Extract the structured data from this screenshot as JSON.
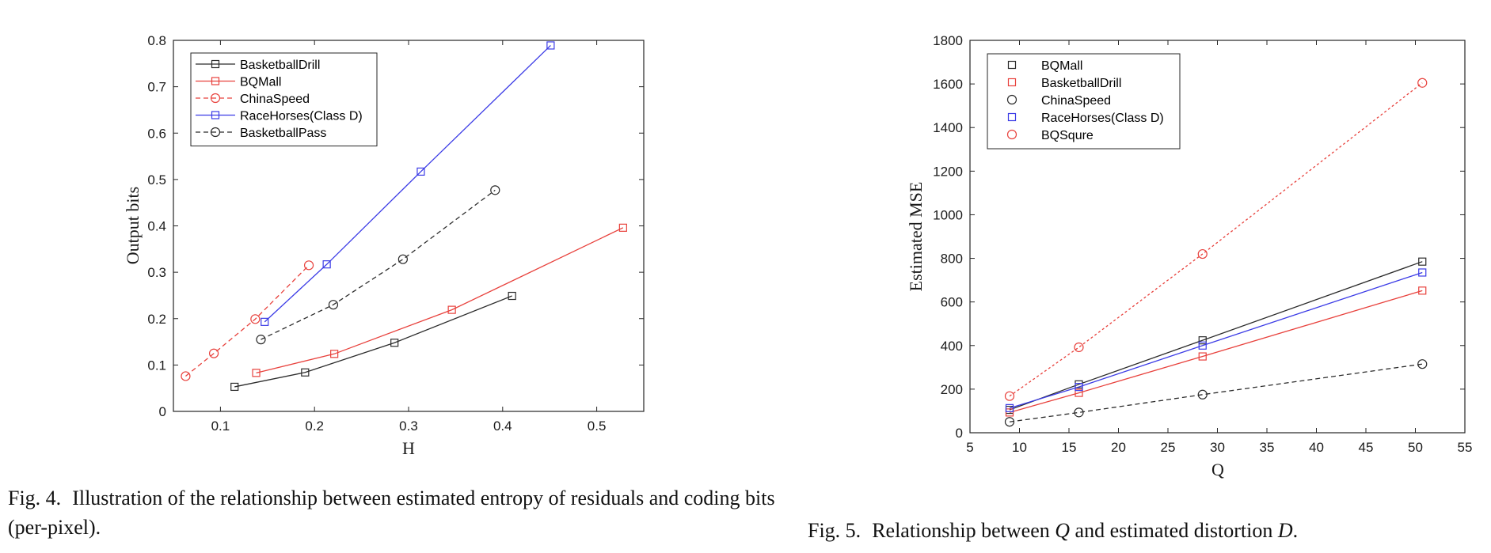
{
  "colors": {
    "black": "#2b2b2b",
    "red": "#e8413c",
    "blue": "#3b3be6",
    "axis": "#262626"
  },
  "chart_data": [
    {
      "type": "line",
      "xlabel": "H",
      "ylabel": "Output bits",
      "xlim": [
        0.05,
        0.55
      ],
      "ylim": [
        0,
        0.8
      ],
      "xticks": [
        0.1,
        0.2,
        0.3,
        0.4,
        0.5
      ],
      "yticks": [
        0,
        0.1,
        0.2,
        0.3,
        0.4,
        0.5,
        0.6,
        0.7,
        0.8
      ],
      "legend_position": "top-left",
      "series": [
        {
          "name": "BasketballDrill",
          "color": "black",
          "dash": "solid",
          "marker": "square",
          "points": [
            [
              0.115,
              0.053
            ],
            [
              0.19,
              0.084
            ],
            [
              0.285,
              0.148
            ],
            [
              0.41,
              0.249
            ]
          ]
        },
        {
          "name": "BQMall",
          "color": "red",
          "dash": "solid",
          "marker": "square",
          "points": [
            [
              0.138,
              0.083
            ],
            [
              0.221,
              0.124
            ],
            [
              0.346,
              0.219
            ],
            [
              0.528,
              0.396
            ]
          ]
        },
        {
          "name": "ChinaSpeed",
          "color": "red",
          "dash": "dashed",
          "marker": "circle",
          "points": [
            [
              0.063,
              0.076
            ],
            [
              0.093,
              0.125
            ],
            [
              0.137,
              0.199
            ],
            [
              0.194,
              0.315
            ]
          ]
        },
        {
          "name": "RaceHorses(Class D)",
          "color": "blue",
          "dash": "solid",
          "marker": "square",
          "points": [
            [
              0.147,
              0.193
            ],
            [
              0.213,
              0.317
            ],
            [
              0.313,
              0.517
            ],
            [
              0.451,
              0.789
            ]
          ]
        },
        {
          "name": "BasketballPass",
          "color": "black",
          "dash": "dashed",
          "marker": "circle",
          "points": [
            [
              0.143,
              0.155
            ],
            [
              0.22,
              0.23
            ],
            [
              0.294,
              0.328
            ],
            [
              0.392,
              0.477
            ]
          ]
        }
      ]
    },
    {
      "type": "line",
      "xlabel": "Q",
      "ylabel": "Estimated MSE",
      "xlim": [
        5,
        55
      ],
      "ylim": [
        0,
        1800
      ],
      "xticks": [
        5,
        10,
        15,
        20,
        25,
        30,
        35,
        40,
        45,
        50,
        55
      ],
      "yticks": [
        0,
        200,
        400,
        600,
        800,
        1000,
        1200,
        1400,
        1600,
        1800
      ],
      "legend_position": "top-left",
      "series": [
        {
          "name": "BQMall",
          "color": "black",
          "dash": "solid",
          "marker": "square",
          "points": [
            [
              9,
              105
            ],
            [
              16,
              222
            ],
            [
              28.5,
              424
            ],
            [
              50.7,
              785
            ]
          ]
        },
        {
          "name": "BasketballDrill",
          "color": "red",
          "dash": "solid",
          "marker": "square",
          "points": [
            [
              9,
              93
            ],
            [
              16,
              183
            ],
            [
              28.5,
              350
            ],
            [
              50.7,
              652
            ]
          ]
        },
        {
          "name": "ChinaSpeed",
          "color": "black",
          "dash": "dashed",
          "marker": "circle",
          "points": [
            [
              9,
              50
            ],
            [
              16,
              93
            ],
            [
              28.5,
              175
            ],
            [
              50.7,
              315
            ]
          ]
        },
        {
          "name": "RaceHorses(Class D)",
          "color": "blue",
          "dash": "solid",
          "marker": "square",
          "points": [
            [
              9,
              113
            ],
            [
              16,
              210
            ],
            [
              28.5,
              400
            ],
            [
              50.7,
              735
            ]
          ]
        },
        {
          "name": "BQSqure",
          "color": "red",
          "dash": "dotted",
          "marker": "circle",
          "points": [
            [
              9,
              168
            ],
            [
              16,
              392
            ],
            [
              28.5,
              820
            ],
            [
              50.7,
              1605
            ]
          ]
        }
      ]
    }
  ],
  "captions": {
    "fig4_prefix": "Fig. 4.",
    "fig4_text": "Illustration of the relationship between estimated entropy of residuals and coding bits (per-pixel).",
    "fig5_prefix": "Fig. 5.",
    "fig5_text_a": "Relationship between ",
    "fig5_var_q": "Q",
    "fig5_text_b": " and estimated distortion ",
    "fig5_var_d": "D",
    "fig5_text_c": "."
  }
}
